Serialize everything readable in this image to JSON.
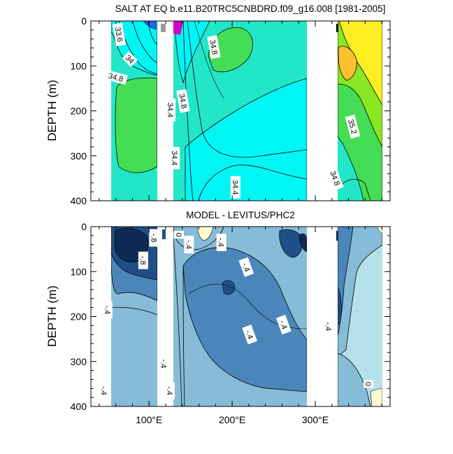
{
  "chart_data": [
    {
      "type": "contour",
      "title": "SALT AT EQ b.e11.B20TRC5CNBDRD.f09_g16.008 [1981-2005]",
      "ylabel": "DEPTH (m)",
      "xlabel": "",
      "xlim": [
        30,
        390
      ],
      "ylim": [
        0,
        400
      ],
      "y_inverted": true,
      "y_ticks": [
        "0",
        "100",
        "200",
        "300",
        "400"
      ],
      "x_ticks": [],
      "colors": {
        "fresh": "#1d6bff",
        "cyan": "#00f5f5",
        "teal": "#22e6c8",
        "green": "#44dd55",
        "lime": "#88e622",
        "yellow": "#ffee22",
        "orange": "#ffc030",
        "magenta": "#d000d0"
      },
      "contour_labels": [
        {
          "text": "33.6",
          "x": 64,
          "y": 30,
          "angle": 80
        },
        {
          "text": "34",
          "x": 77,
          "y": 85,
          "angle": 45
        },
        {
          "text": "34.8",
          "x": 60,
          "y": 125,
          "angle": 15
        },
        {
          "text": "34.8",
          "x": 178,
          "y": 58,
          "angle": 80
        },
        {
          "text": "34.8",
          "x": 141,
          "y": 178,
          "angle": 80
        },
        {
          "text": "34.4",
          "x": 126,
          "y": 198,
          "angle": 90
        },
        {
          "text": "34.4",
          "x": 131,
          "y": 305,
          "angle": 90
        },
        {
          "text": "34.4",
          "x": 204,
          "y": 370,
          "angle": 90
        },
        {
          "text": "35.2",
          "x": 345,
          "y": 235,
          "angle": 75
        },
        {
          "text": "34.8",
          "x": 324,
          "y": 350,
          "angle": 70
        }
      ]
    },
    {
      "type": "contour",
      "title": "MODEL - LEVITUS/PHC2",
      "ylabel": "DEPTH (m)",
      "xlabel": "",
      "xlim": [
        30,
        390
      ],
      "ylim": [
        0,
        400
      ],
      "y_inverted": true,
      "y_ticks": [
        "0",
        "100",
        "200",
        "300",
        "400"
      ],
      "x_ticks": [
        "100°E",
        "200°E",
        "300°E"
      ],
      "x_tick_values": [
        100,
        200,
        300
      ],
      "colors": {
        "deepest": "#0e2a55",
        "deep": "#1f4f86",
        "mid": "#4a86ba",
        "light": "#86bcd8",
        "lighter": "#b6e0ea",
        "cream": "#fffad0"
      },
      "contour_labels": [
        {
          "text": "-.8",
          "x": 93,
          "y": 75,
          "angle": 90
        },
        {
          "text": "-.8",
          "x": 106,
          "y": 25,
          "angle": 90
        },
        {
          "text": "0",
          "x": 136,
          "y": 18,
          "angle": 90
        },
        {
          "text": "-.4",
          "x": 148,
          "y": 40,
          "angle": 90
        },
        {
          "text": "-.4",
          "x": 187,
          "y": 35,
          "angle": 90
        },
        {
          "text": "-.4",
          "x": 217,
          "y": 90,
          "angle": 70
        },
        {
          "text": "-.4",
          "x": 50,
          "y": 185,
          "angle": 90
        },
        {
          "text": "-.4",
          "x": 221,
          "y": 240,
          "angle": 70
        },
        {
          "text": "-.4",
          "x": 262,
          "y": 218,
          "angle": 70
        },
        {
          "text": "-.4",
          "x": 118,
          "y": 305,
          "angle": 90
        },
        {
          "text": "-.4",
          "x": 125,
          "y": 365,
          "angle": 90
        },
        {
          "text": "-.4",
          "x": 46,
          "y": 365,
          "angle": 90
        },
        {
          "text": "-.4",
          "x": 316,
          "y": 222,
          "angle": 90
        },
        {
          "text": "0",
          "x": 364,
          "y": 350,
          "angle": 90
        }
      ]
    }
  ]
}
